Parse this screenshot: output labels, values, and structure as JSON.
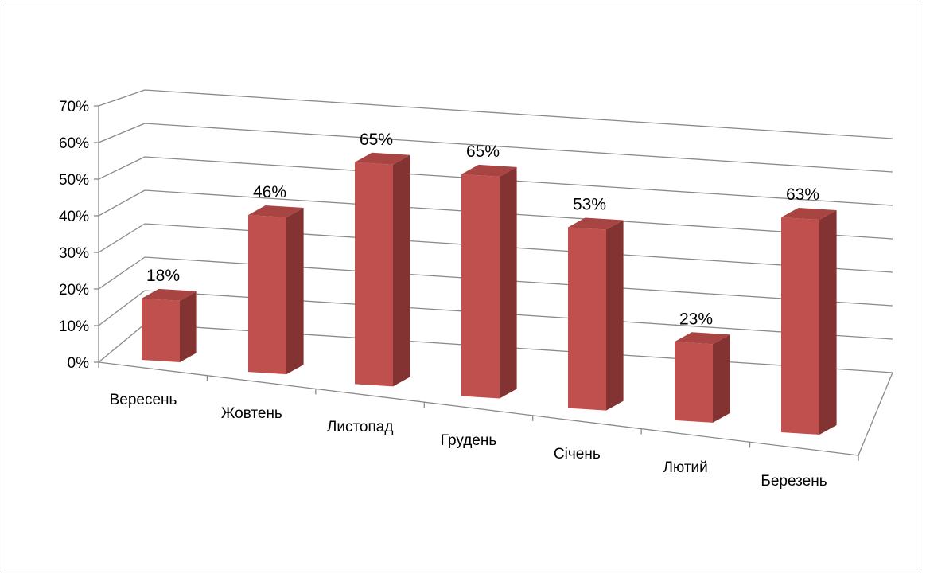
{
  "chart_data": {
    "type": "bar",
    "subtype": "3d-column",
    "title": "",
    "xlabel": "",
    "ylabel": "",
    "categories": [
      "Вересень",
      "Жовтень",
      "Листопад",
      "Грудень",
      "Січень",
      "Лютий",
      "Березень"
    ],
    "series": [
      {
        "values": [
          18,
          46,
          65,
          65,
          53,
          23,
          63
        ]
      }
    ],
    "data_labels": [
      "18%",
      "46%",
      "65%",
      "65%",
      "53%",
      "23%",
      "63%"
    ],
    "y_ticks": [
      "0%",
      "10%",
      "20%",
      "30%",
      "40%",
      "50%",
      "60%",
      "70%"
    ],
    "ylim": [
      0,
      70
    ],
    "grid": true,
    "legend": "none",
    "colors": {
      "bar_front": "#c0504d",
      "bar_side": "#833331",
      "bar_top": "#a84441",
      "gridline": "#8a8a8a",
      "border": "#8a8a8a"
    }
  }
}
